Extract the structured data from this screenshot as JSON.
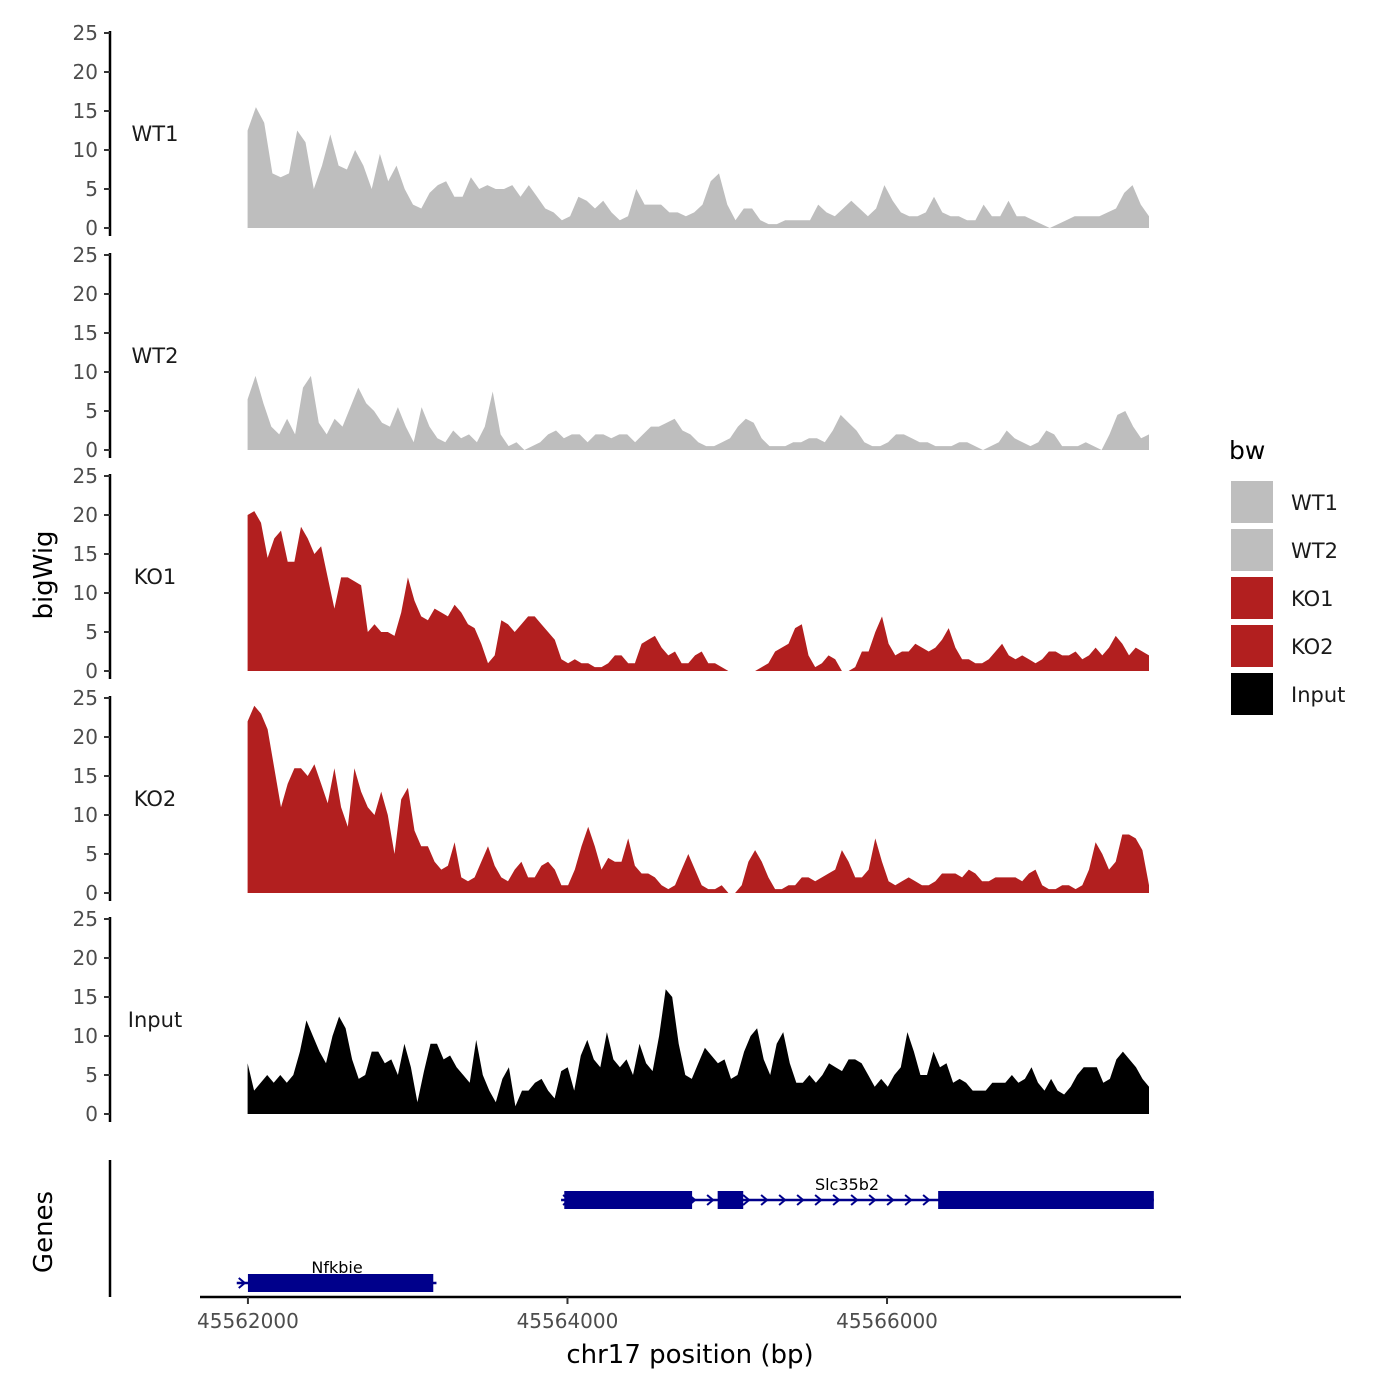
{
  "chart_data": {
    "type": "area",
    "title": "",
    "ylabel": "bigWig",
    "xlabel": "chr17 position (bp)",
    "xlim": [
      45561700,
      45567840
    ],
    "ylim": [
      0,
      25
    ],
    "y_ticks": [
      0,
      5,
      10,
      15,
      20,
      25
    ],
    "x_ticks": [
      45562000,
      45564000,
      45566000
    ],
    "x_tick_labels": [
      "45562000",
      "45564000",
      "45566000"
    ],
    "data_start": 45561998,
    "data_end": 45567640,
    "legend": {
      "title": "bw",
      "position": "right",
      "entries": [
        {
          "label": "WT1",
          "color": "#bebebe"
        },
        {
          "label": "WT2",
          "color": "#bebebe"
        },
        {
          "label": "KO1",
          "color": "#b21f1f"
        },
        {
          "label": "KO2",
          "color": "#b21f1f"
        },
        {
          "label": "Input",
          "color": "#000000"
        }
      ]
    },
    "series": [
      {
        "name": "WT1",
        "color": "#bebebe",
        "values": [
          12.5,
          15.5,
          13.5,
          7,
          6.5,
          7,
          12.5,
          11,
          5,
          8,
          12,
          8,
          7.5,
          10,
          8,
          5,
          9.5,
          6,
          8,
          5,
          3,
          2.5,
          4.5,
          5.5,
          6,
          4,
          4,
          6.5,
          5,
          5.5,
          5,
          5,
          5.5,
          4,
          5.5,
          4,
          2.5,
          2,
          1,
          1.5,
          4,
          3.5,
          2.5,
          3.5,
          2,
          1,
          1.5,
          5,
          3,
          3,
          3,
          2,
          2,
          1.5,
          2,
          3,
          6,
          7,
          3,
          1,
          2.5,
          2.5,
          1,
          0.5,
          0.5,
          1,
          1,
          1,
          1,
          3,
          2,
          1.5,
          2.5,
          3.5,
          2.5,
          1.5,
          2.5,
          5.5,
          3.5,
          2,
          1.5,
          1.5,
          2,
          4,
          2,
          1.5,
          1.5,
          1,
          1,
          3,
          1.5,
          1.5,
          3.5,
          1.5,
          1.5,
          1,
          0.5,
          0,
          0.5,
          1,
          1.5,
          1.5,
          1.5,
          1.5,
          2,
          2.5,
          4.5,
          5.5,
          3,
          1.5
        ]
      },
      {
        "name": "WT2",
        "color": "#bebebe",
        "values": [
          6.5,
          9.5,
          6,
          3,
          2,
          4,
          2,
          8,
          9.5,
          3.5,
          2,
          4,
          3,
          5.5,
          8,
          6,
          5,
          3.5,
          3,
          5.5,
          3,
          1,
          5.5,
          3,
          1.5,
          1,
          2.5,
          1.5,
          2,
          1,
          3,
          7.5,
          2,
          0.5,
          1,
          0,
          0.5,
          1,
          2,
          2.5,
          1.5,
          2,
          2,
          1,
          2,
          2,
          1.5,
          2,
          2,
          1,
          2,
          3,
          3,
          3.5,
          4,
          2.5,
          2,
          1,
          0.5,
          0.5,
          1,
          1.5,
          3,
          4,
          3.5,
          1.5,
          0.5,
          0.5,
          0.5,
          1,
          1,
          1.5,
          1.5,
          1,
          2.5,
          4.5,
          3.5,
          2.5,
          1,
          0.5,
          0.5,
          1,
          2,
          2,
          1.5,
          1,
          1,
          0.5,
          0.5,
          0.5,
          1,
          1,
          0.5,
          0,
          0.5,
          1,
          2.5,
          1.5,
          1,
          0.5,
          1,
          2.5,
          2,
          0.5,
          0.5,
          0.5,
          1,
          0.5,
          0,
          2,
          4.5,
          5,
          3,
          1.5,
          2
        ]
      },
      {
        "name": "KO1",
        "color": "#b21f1f",
        "values": [
          20,
          20.5,
          19,
          14.5,
          17,
          18,
          14,
          14,
          18.5,
          17,
          15,
          16,
          12,
          8,
          12,
          12,
          11.5,
          11,
          5,
          6,
          5,
          5,
          4.5,
          7.5,
          12,
          9,
          7,
          6.5,
          8,
          7.5,
          7,
          8.5,
          7.5,
          6,
          5.5,
          3.5,
          1,
          2,
          6.5,
          6,
          5,
          6,
          7,
          7,
          6,
          5,
          4,
          1.5,
          1,
          1.5,
          1,
          1,
          0.5,
          0.5,
          1,
          2,
          2,
          1,
          1,
          3.5,
          4,
          4.5,
          3,
          2,
          2.5,
          1,
          1,
          2,
          2.5,
          1,
          1,
          0.5,
          0,
          0,
          0,
          0,
          0,
          0.5,
          1,
          2.5,
          3,
          3.5,
          5.5,
          6,
          2,
          0.5,
          1,
          2,
          1.5,
          0,
          0,
          0.5,
          2.5,
          2.5,
          5,
          7,
          3.5,
          2,
          2.5,
          2.5,
          3.5,
          3,
          2.5,
          3,
          4,
          5.5,
          3,
          1.5,
          1.5,
          1,
          1,
          1.5,
          2.5,
          3.5,
          2,
          1.5,
          2,
          1.5,
          1,
          1.5,
          2.5,
          2.5,
          2,
          2,
          2.5,
          1.5,
          2,
          3,
          2,
          3,
          4.5,
          3.5,
          2,
          3,
          2.5,
          2
        ]
      },
      {
        "name": "KO2",
        "color": "#b21f1f",
        "values": [
          22,
          24,
          23,
          21,
          16,
          11,
          14,
          16,
          16,
          15,
          16.5,
          14,
          11.5,
          16,
          11,
          8.5,
          16,
          13,
          11,
          10,
          13,
          10,
          5,
          12,
          13.5,
          8,
          6,
          6,
          4,
          3,
          3.5,
          6.5,
          2,
          1.5,
          2,
          4,
          6,
          3.5,
          2,
          1.5,
          3,
          4,
          2,
          2,
          3.5,
          4,
          3,
          1,
          1,
          3,
          6,
          8.5,
          6,
          3,
          4.5,
          4,
          4,
          7,
          3.5,
          2.5,
          2.5,
          2,
          1,
          0.5,
          1,
          3,
          5,
          3,
          1,
          0.5,
          0.5,
          1,
          0,
          0,
          1,
          4,
          5.5,
          4,
          2,
          0.5,
          0.5,
          1,
          1,
          2,
          2,
          1.5,
          2,
          2.5,
          3,
          5.5,
          4,
          2,
          2,
          3,
          7,
          4,
          1.5,
          1,
          1.5,
          2,
          1.5,
          1,
          1,
          1.5,
          2.5,
          2.5,
          2.5,
          2,
          3,
          2.5,
          1.5,
          1.5,
          2,
          2,
          2,
          2,
          1.5,
          2.5,
          3,
          1,
          0.5,
          0.5,
          1,
          1,
          0.5,
          1,
          3,
          6.5,
          5,
          3,
          4,
          7.5,
          7.5,
          7,
          5.5,
          1
        ]
      },
      {
        "name": "Input",
        "color": "#000000",
        "values": [
          6.5,
          3,
          4,
          5,
          4,
          5,
          4,
          5,
          8,
          12,
          10,
          8,
          6.5,
          10,
          12.5,
          11,
          7,
          4.5,
          5,
          8,
          8,
          6.5,
          7,
          5,
          9,
          6,
          1.5,
          5.5,
          9,
          9,
          7,
          7.5,
          6,
          5,
          4,
          9.5,
          5,
          3,
          1.5,
          4.5,
          6,
          1,
          3,
          3,
          4,
          4.5,
          3,
          2,
          5.5,
          6,
          3,
          7.5,
          9.5,
          7,
          6,
          10.5,
          7,
          6,
          7,
          5,
          9,
          6.5,
          5.5,
          10,
          16,
          15,
          9,
          5,
          4.5,
          6.5,
          8.5,
          7.5,
          6.5,
          7,
          4.5,
          5,
          8,
          10,
          11,
          7,
          5,
          9,
          10.5,
          6.5,
          4,
          4,
          5,
          4,
          5,
          6.5,
          6,
          5.5,
          7,
          7,
          6.5,
          5,
          3.5,
          4.5,
          3.5,
          5,
          6,
          10.5,
          8,
          5,
          5,
          8,
          6,
          6.5,
          4,
          4.5,
          4,
          3,
          3,
          3,
          4,
          4,
          4,
          5,
          4,
          4.5,
          6,
          4,
          3,
          4.5,
          3,
          2.5,
          3.5,
          5,
          6,
          6,
          6,
          4,
          4.5,
          7,
          8,
          7,
          6,
          4.5,
          3.5
        ]
      }
    ],
    "genes": {
      "axis_label": "Genes",
      "items": [
        {
          "name": "Slc35b2",
          "strand": "+",
          "start": 45563960,
          "end": 45567670,
          "exons": [
            {
              "start": 45563980,
              "end": 45564780
            },
            {
              "start": 45564940,
              "end": 45565100
            },
            {
              "start": 45566320,
              "end": 45567670
            }
          ]
        },
        {
          "name": "Nfkbie",
          "strand": "+",
          "start": 45561930,
          "end": 45563180,
          "exons": [
            {
              "start": 45562000,
              "end": 45563160
            }
          ]
        }
      ]
    }
  }
}
